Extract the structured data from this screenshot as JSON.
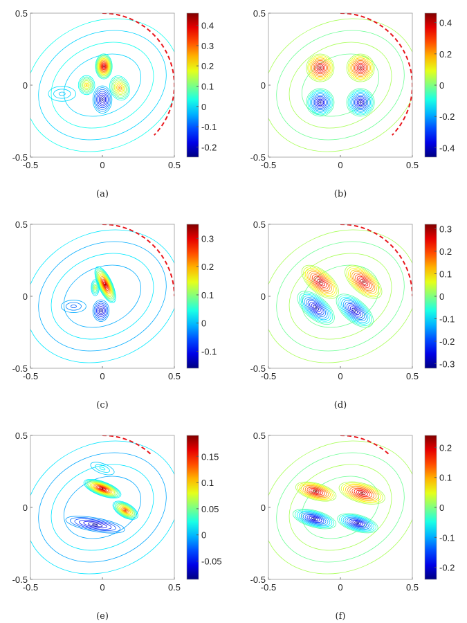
{
  "chart_data": [
    {
      "type": "contour",
      "label": "(a)",
      "xlim": [
        -0.5,
        0.5
      ],
      "ylim": [
        -0.5,
        0.5
      ],
      "xticks": [
        "-0.5",
        "0",
        "0.5"
      ],
      "yticks": [
        "-0.5",
        "0",
        "0.5"
      ],
      "clim": [
        -0.25,
        0.46
      ],
      "cticks": [
        0.4,
        0.3,
        0.2,
        0.1,
        0,
        -0.1,
        -0.2
      ],
      "arc": {
        "radius": 0.5,
        "from_deg": 90,
        "to_deg": -45
      },
      "extrema": [
        {
          "x": 0.01,
          "y": 0.13,
          "v": 0.46,
          "sx": 0.06,
          "sy": 0.09,
          "rot": 0
        },
        {
          "x": -0.11,
          "y": 0.0,
          "v": 0.25,
          "sx": 0.06,
          "sy": 0.07,
          "rot": 0
        },
        {
          "x": 0.12,
          "y": -0.02,
          "v": 0.3,
          "sx": 0.07,
          "sy": 0.09,
          "rot": 20
        },
        {
          "x": 0.0,
          "y": -0.1,
          "v": -0.25,
          "sx": 0.07,
          "sy": 0.1,
          "rot": 0
        },
        {
          "x": -0.28,
          "y": -0.06,
          "v": -0.03,
          "sx": 0.11,
          "sy": 0.06,
          "rot": 0
        }
      ]
    },
    {
      "type": "contour",
      "label": "(b)",
      "xlim": [
        -0.5,
        0.5
      ],
      "ylim": [
        -0.5,
        0.5
      ],
      "xticks": [
        "-0.5",
        "0",
        "0.5"
      ],
      "yticks": [
        "-0.5",
        "0",
        "0.5"
      ],
      "clim": [
        -0.46,
        0.46
      ],
      "cticks": [
        0.4,
        0.2,
        0,
        -0.2,
        -0.4
      ],
      "arc": {
        "radius": 0.5,
        "from_deg": 90,
        "to_deg": -45
      },
      "extrema": [
        {
          "x": -0.14,
          "y": 0.12,
          "v": 0.46,
          "sx": 0.1,
          "sy": 0.1,
          "rot": 0
        },
        {
          "x": 0.14,
          "y": 0.12,
          "v": 0.46,
          "sx": 0.1,
          "sy": 0.1,
          "rot": 0
        },
        {
          "x": -0.14,
          "y": -0.12,
          "v": -0.46,
          "sx": 0.1,
          "sy": 0.1,
          "rot": 0
        },
        {
          "x": 0.14,
          "y": -0.12,
          "v": -0.46,
          "sx": 0.1,
          "sy": 0.1,
          "rot": 0
        }
      ]
    },
    {
      "type": "contour",
      "label": "(c)",
      "xlim": [
        -0.5,
        0.5
      ],
      "ylim": [
        -0.5,
        0.5
      ],
      "xticks": [
        "-0.5",
        "0",
        "0.5"
      ],
      "yticks": [
        "-0.5",
        "0",
        "0.5"
      ],
      "clim": [
        -0.16,
        0.35
      ],
      "cticks": [
        0.3,
        0.2,
        0.1,
        0,
        -0.1
      ],
      "arc": {
        "radius": 0.5,
        "from_deg": 90,
        "to_deg": 0
      },
      "extrema": [
        {
          "x": 0.02,
          "y": 0.08,
          "v": 0.35,
          "sx": 0.05,
          "sy": 0.14,
          "rot": 25
        },
        {
          "x": -0.05,
          "y": 0.06,
          "v": 0.15,
          "sx": 0.03,
          "sy": 0.06,
          "rot": 0
        },
        {
          "x": -0.01,
          "y": -0.1,
          "v": -0.16,
          "sx": 0.06,
          "sy": 0.08,
          "rot": 0
        },
        {
          "x": -0.2,
          "y": -0.07,
          "v": -0.06,
          "sx": 0.1,
          "sy": 0.05,
          "rot": 0
        }
      ]
    },
    {
      "type": "contour",
      "label": "(d)",
      "xlim": [
        -0.5,
        0.5
      ],
      "ylim": [
        -0.5,
        0.5
      ],
      "xticks": [
        "-0.5",
        "0",
        "0.5"
      ],
      "yticks": [
        "-0.5",
        "0",
        "0.5"
      ],
      "clim": [
        -0.32,
        0.32
      ],
      "cticks": [
        0.3,
        0.2,
        0.1,
        0,
        -0.1,
        -0.2,
        -0.3
      ],
      "arc": {
        "radius": 0.5,
        "from_deg": 90,
        "to_deg": 0
      },
      "extrema": [
        {
          "x": -0.14,
          "y": 0.1,
          "v": 0.32,
          "sx": 0.16,
          "sy": 0.08,
          "rot": -40
        },
        {
          "x": 0.16,
          "y": 0.1,
          "v": 0.32,
          "sx": 0.16,
          "sy": 0.08,
          "rot": -40
        },
        {
          "x": -0.17,
          "y": -0.08,
          "v": -0.32,
          "sx": 0.16,
          "sy": 0.08,
          "rot": -40
        },
        {
          "x": 0.1,
          "y": -0.1,
          "v": -0.32,
          "sx": 0.16,
          "sy": 0.08,
          "rot": -40
        }
      ]
    },
    {
      "type": "contour",
      "label": "(e)",
      "xlim": [
        -0.5,
        0.5
      ],
      "ylim": [
        -0.5,
        0.5
      ],
      "xticks": [
        "-0.5",
        "0",
        "0.5"
      ],
      "yticks": [
        "-0.5",
        "0",
        "0.5"
      ],
      "clim": [
        -0.085,
        0.19
      ],
      "cticks": [
        0.15,
        0.1,
        0.05,
        0,
        -0.05
      ],
      "arc": {
        "radius": 0.5,
        "from_deg": 90,
        "to_deg": 45
      },
      "extrema": [
        {
          "x": 0.0,
          "y": 0.13,
          "v": 0.19,
          "sx": 0.14,
          "sy": 0.05,
          "rot": -20
        },
        {
          "x": 0.16,
          "y": -0.02,
          "v": 0.15,
          "sx": 0.1,
          "sy": 0.05,
          "rot": -30
        },
        {
          "x": -0.05,
          "y": -0.12,
          "v": -0.085,
          "sx": 0.22,
          "sy": 0.05,
          "rot": -10
        },
        {
          "x": 0.0,
          "y": 0.27,
          "v": 0.02,
          "sx": 0.1,
          "sy": 0.04,
          "rot": -20
        }
      ]
    },
    {
      "type": "contour",
      "label": "(f)",
      "xlim": [
        -0.5,
        0.5
      ],
      "ylim": [
        -0.5,
        0.5
      ],
      "xticks": [
        "-0.5",
        "0",
        "0.5"
      ],
      "yticks": [
        "-0.5",
        "0",
        "0.5"
      ],
      "clim": [
        -0.24,
        0.24
      ],
      "cticks": [
        0.2,
        0.1,
        0,
        -0.1,
        -0.2
      ],
      "arc": {
        "radius": 0.5,
        "from_deg": 90,
        "to_deg": 45
      },
      "extrema": [
        {
          "x": -0.17,
          "y": 0.11,
          "v": 0.24,
          "sx": 0.15,
          "sy": 0.06,
          "rot": -15
        },
        {
          "x": 0.15,
          "y": 0.1,
          "v": 0.24,
          "sx": 0.17,
          "sy": 0.07,
          "rot": -15
        },
        {
          "x": -0.18,
          "y": -0.08,
          "v": -0.24,
          "sx": 0.16,
          "sy": 0.06,
          "rot": -15
        },
        {
          "x": 0.12,
          "y": -0.11,
          "v": -0.24,
          "sx": 0.15,
          "sy": 0.06,
          "rot": -15
        }
      ]
    }
  ]
}
